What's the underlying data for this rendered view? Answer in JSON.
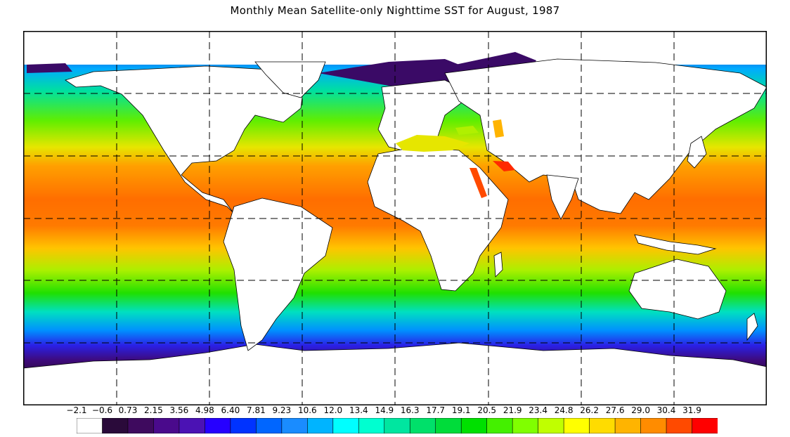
{
  "title": "Monthly Mean Satellite-only Nighttime SST for August, 1987",
  "colorbar": {
    "labels": [
      "−2.1",
      "−0.6",
      "0.73",
      "2.15",
      "3.56",
      "4.98",
      "6.40",
      "7.81",
      "9.23",
      "10.6",
      "12.0",
      "13.4",
      "14.9",
      "16.3",
      "17.7",
      "19.1",
      "20.5",
      "21.9",
      "23.4",
      "24.8",
      "26.2",
      "27.6",
      "29.0",
      "30.4",
      "31.9"
    ],
    "colors": [
      "#ffffff",
      "#2a0a3a",
      "#3e0a5e",
      "#4a0a8c",
      "#4b12b4",
      "#2600ff",
      "#0033ff",
      "#0066ff",
      "#1a8cff",
      "#00b4ff",
      "#00ffff",
      "#00ffd0",
      "#00e6a0",
      "#00e06a",
      "#00dc3a",
      "#00e000",
      "#44f000",
      "#80ff00",
      "#c0ff00",
      "#ffff00",
      "#ffdc00",
      "#ffb400",
      "#ff8c00",
      "#ff4a00",
      "#ff0000"
    ]
  },
  "map": {
    "projection": "equirectangular",
    "grid_style": "dashed",
    "longitude_grid": 8,
    "latitude_grid": 6
  }
}
